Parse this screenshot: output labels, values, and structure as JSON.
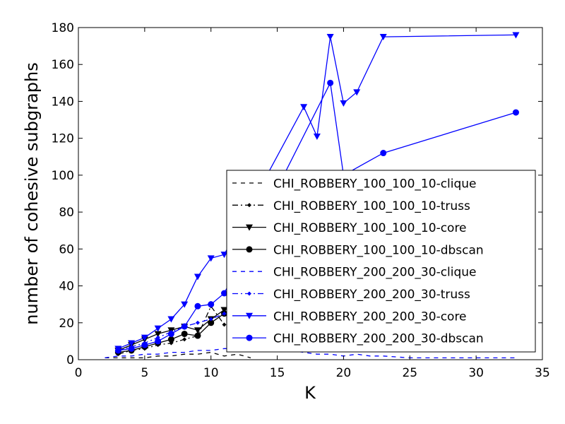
{
  "chart_data": {
    "type": "line",
    "title": "",
    "xlabel": "K",
    "ylabel": "number of cohesive subgraphs",
    "xlim": [
      0,
      35
    ],
    "ylim": [
      0,
      180
    ],
    "xticks": [
      "0",
      "5",
      "10",
      "15",
      "20",
      "25",
      "30",
      "35"
    ],
    "yticks": [
      "0",
      "20",
      "40",
      "60",
      "80",
      "100",
      "120",
      "140",
      "160",
      "180"
    ],
    "grid": false,
    "legend_position": "lower-right",
    "series": [
      {
        "name": "CHI_ROBBERY_100_100_10-clique",
        "color": "#000000",
        "dash": "dashed",
        "marker": "none",
        "x": [
          2,
          3,
          4,
          5,
          6,
          7,
          8,
          9,
          10,
          11,
          12,
          13
        ],
        "y": [
          1,
          1,
          1,
          1,
          2,
          2,
          3,
          3,
          4,
          2,
          3,
          1
        ]
      },
      {
        "name": "CHI_ROBBERY_100_100_10-truss",
        "color": "#000000",
        "dash": "dashdot",
        "marker": "dot",
        "x": [
          3,
          4,
          5,
          6,
          7,
          8,
          9,
          10,
          11,
          12
        ],
        "y": [
          3,
          5,
          6,
          8,
          9,
          11,
          13,
          29,
          19,
          15
        ]
      },
      {
        "name": "CHI_ROBBERY_100_100_10-core",
        "color": "#000000",
        "dash": "solid",
        "marker": "triangle-down",
        "x": [
          3,
          4,
          5,
          6,
          7,
          8,
          9,
          10,
          11,
          12
        ],
        "y": [
          5,
          8,
          11,
          14,
          16,
          18,
          16,
          22,
          27,
          30
        ]
      },
      {
        "name": "CHI_ROBBERY_100_100_10-dbscan",
        "color": "#000000",
        "dash": "solid",
        "marker": "circle",
        "x": [
          3,
          4,
          5,
          6,
          7,
          8,
          9,
          10,
          11,
          12
        ],
        "y": [
          4,
          5,
          7,
          9,
          11,
          14,
          13,
          20,
          25,
          27
        ]
      },
      {
        "name": "CHI_ROBBERY_200_200_30-clique",
        "color": "#0000ff",
        "dash": "dashed",
        "marker": "none",
        "x": [
          2,
          3,
          4,
          5,
          6,
          7,
          8,
          9,
          10,
          11,
          12,
          13,
          14,
          15,
          16,
          17,
          18,
          19,
          20,
          21,
          22,
          23,
          25,
          28,
          30,
          33
        ],
        "y": [
          1,
          2,
          2,
          3,
          3,
          4,
          4,
          5,
          5,
          6,
          6,
          6,
          6,
          5,
          5,
          4,
          3,
          3,
          2,
          3,
          2,
          2,
          1,
          1,
          1,
          1
        ]
      },
      {
        "name": "CHI_ROBBERY_200_200_30-truss",
        "color": "#0000ff",
        "dash": "dashdot",
        "marker": "dot",
        "x": [
          3,
          4,
          5,
          6,
          7,
          8,
          9,
          10,
          11,
          12
        ],
        "y": [
          5,
          7,
          9,
          12,
          15,
          18,
          20,
          22,
          25,
          24
        ]
      },
      {
        "name": "CHI_ROBBERY_200_200_30-core",
        "color": "#0000ff",
        "dash": "solid",
        "marker": "triangle-down",
        "x": [
          3,
          4,
          5,
          6,
          7,
          8,
          9,
          10,
          11,
          17,
          18,
          19,
          20,
          21,
          23,
          33
        ],
        "y": [
          6,
          9,
          12,
          17,
          22,
          30,
          45,
          55,
          57,
          137,
          121,
          175,
          139,
          145,
          175,
          176
        ]
      },
      {
        "name": "CHI_ROBBERY_200_200_30-dbscan",
        "color": "#0000ff",
        "dash": "solid",
        "marker": "circle",
        "x": [
          3,
          4,
          5,
          6,
          7,
          8,
          9,
          10,
          11,
          19,
          20,
          23,
          33
        ],
        "y": [
          5,
          6,
          8,
          10,
          14,
          18,
          29,
          30,
          36,
          150,
          100,
          112,
          134
        ]
      }
    ]
  }
}
